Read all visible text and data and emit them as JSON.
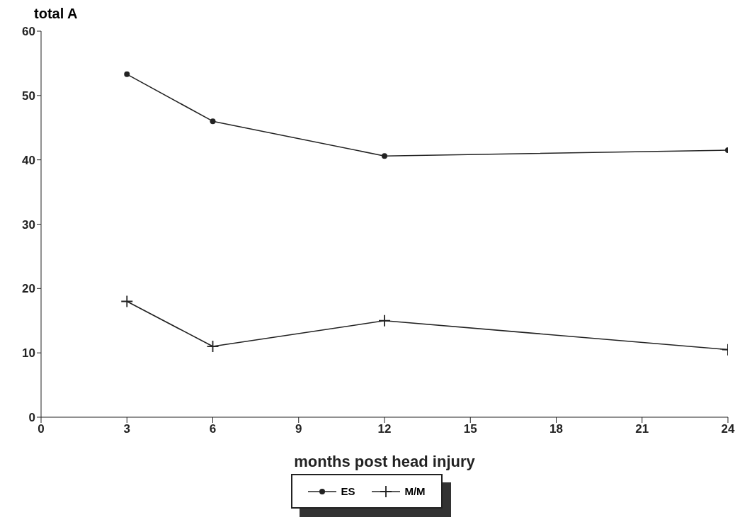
{
  "chart_data": {
    "type": "line",
    "ylabel": "total A",
    "xlabel": "months post head injury",
    "x": [
      3,
      6,
      12,
      24
    ],
    "series": [
      {
        "name": "ES",
        "color": "#222222",
        "values": [
          53.3,
          46,
          40.6,
          41.5
        ],
        "marker": "circle"
      },
      {
        "name": "M/M",
        "color": "#222222",
        "values": [
          18,
          11,
          15,
          10.5
        ],
        "marker": "cross"
      }
    ],
    "xlim": [
      0,
      24
    ],
    "xticks": [
      0,
      3,
      6,
      9,
      12,
      15,
      18,
      21,
      24
    ],
    "ylim": [
      0,
      60
    ],
    "yticks": [
      0,
      10,
      20,
      30,
      40,
      50,
      60
    ],
    "grid": false,
    "legend": "bottom",
    "line_style": "solid"
  }
}
